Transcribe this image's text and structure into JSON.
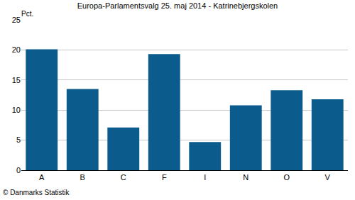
{
  "chart_data": {
    "type": "bar",
    "title": "Europa-Parlamentsvalg 25. maj 2014 - Katrinebjergskolen",
    "ylabel": "Pct.",
    "annotations": [
      "© Danmarks Statistik"
    ],
    "categories": [
      "A",
      "B",
      "C",
      "F",
      "I",
      "N",
      "O",
      "V"
    ],
    "values": [
      20.1,
      13.5,
      7.1,
      19.3,
      4.7,
      10.8,
      13.3,
      11.8
    ],
    "color": "#0b5c8c",
    "ylim": [
      0,
      25
    ],
    "yticks": [
      0,
      5,
      10,
      15,
      20,
      25
    ],
    "grid": true
  }
}
